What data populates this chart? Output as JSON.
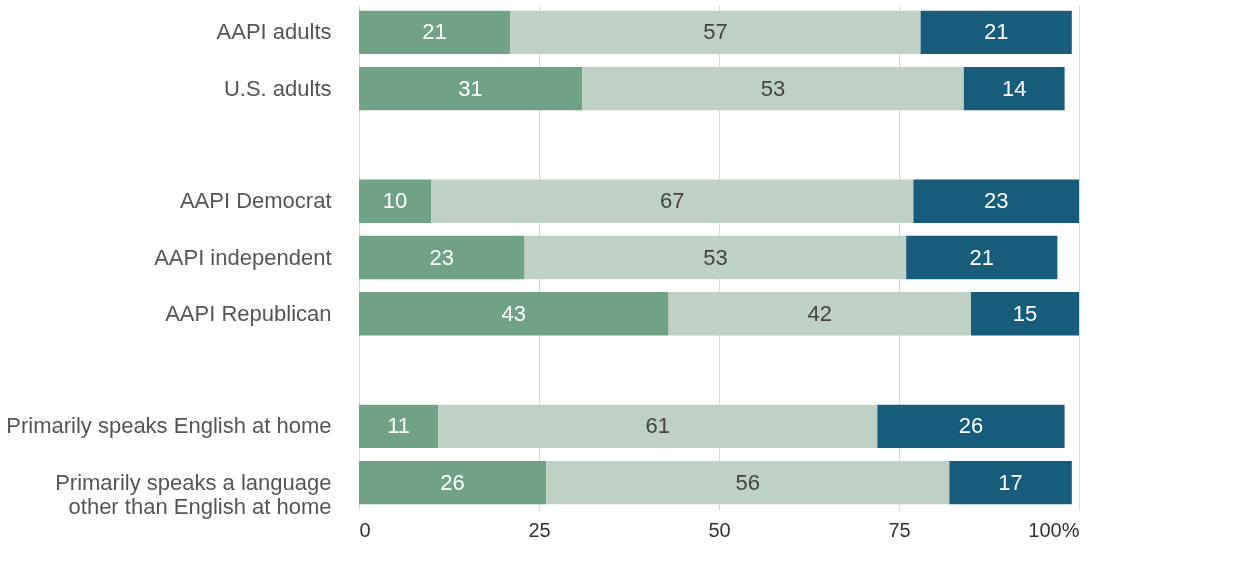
{
  "chart_data": {
    "type": "bar",
    "orientation": "horizontal",
    "stacked": true,
    "data_labels": true,
    "grid": "x",
    "categories": [
      "AAPI adults",
      "U.S. adults",
      null,
      "AAPI Democrat",
      "AAPI independent",
      "AAPI Republican",
      null,
      "Primarily speaks English at home",
      "Primarily speaks a language other than English at home"
    ],
    "series": [
      {
        "color": "#6fa287",
        "values": [
          21,
          31,
          null,
          10,
          23,
          43,
          null,
          11,
          26
        ]
      },
      {
        "color": "#bfd0c4",
        "values": [
          57,
          53,
          null,
          67,
          53,
          42,
          null,
          61,
          56
        ]
      },
      {
        "color": "#175c7b",
        "values": [
          21,
          14,
          null,
          23,
          21,
          15,
          null,
          26,
          17
        ]
      }
    ],
    "xlim": [
      0,
      100
    ],
    "xticks": [
      0,
      25,
      50,
      75,
      {
        "value": 100,
        "label": "100%"
      }
    ]
  }
}
